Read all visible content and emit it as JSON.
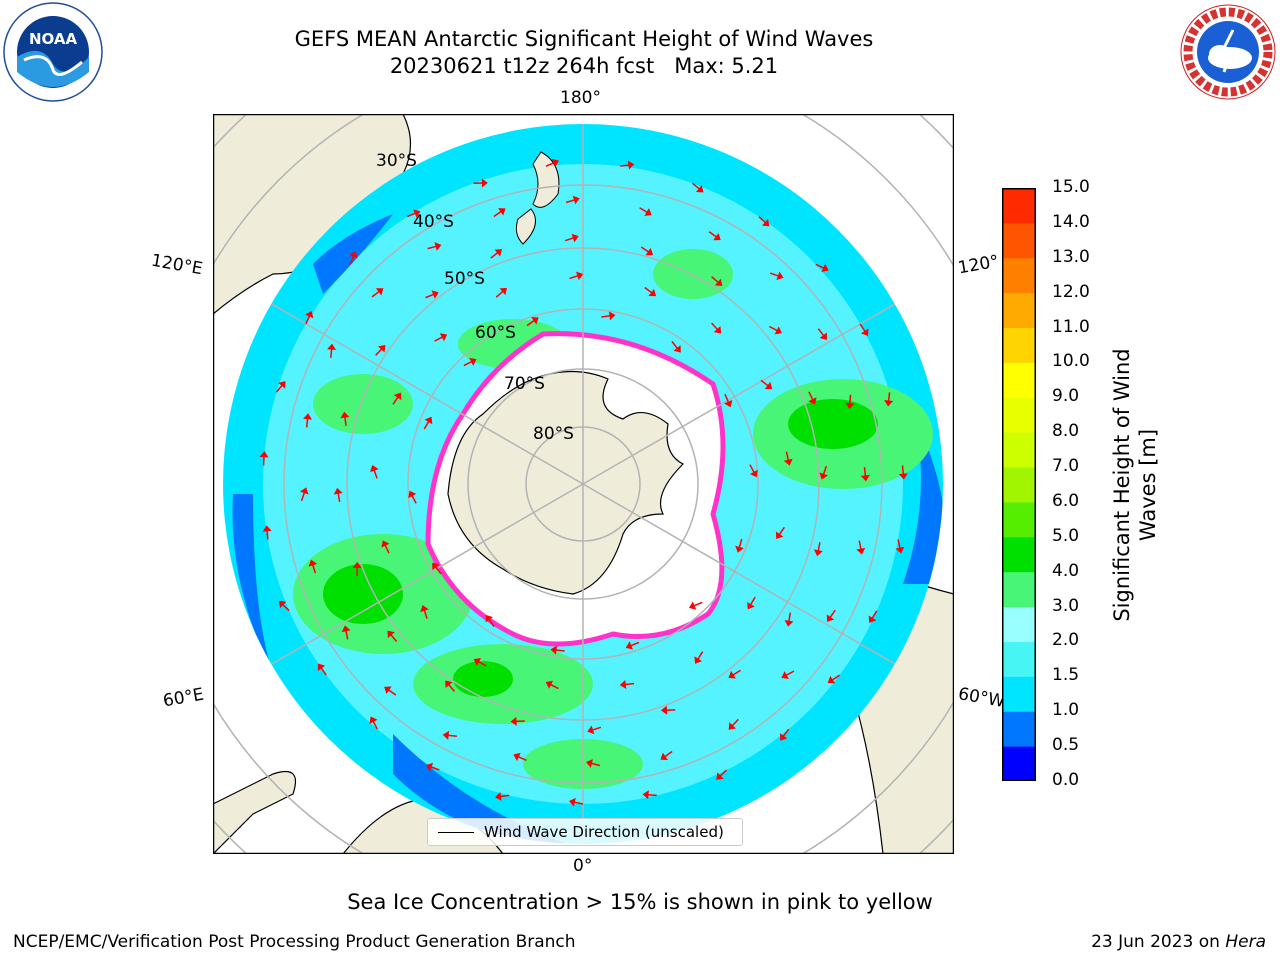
{
  "header": {
    "title_line1": "GEFS MEAN Antarctic Significant Height of Wind Waves",
    "title_line2": "20230621 t12z 264h fcst   Max: 5.21"
  },
  "logos": {
    "left": {
      "name": "noaa-logo",
      "text": "NOAA"
    },
    "right": {
      "name": "nws-logo",
      "text": "NATIONAL WEATHER SERVICE"
    }
  },
  "map": {
    "projection": "south-polar-stereographic",
    "longitude_labels": [
      "180°",
      "120°E",
      "120°",
      "60°E",
      "60°W",
      "0°"
    ],
    "latitude_labels": [
      "30°S",
      "40°S",
      "50°S",
      "60°S",
      "70°S",
      "80°S"
    ],
    "colors": {
      "land": "#efedda",
      "ocean_low": "#00e5ff",
      "ocean_mid": "#99ffff",
      "ocean_high": "#48f577",
      "ocean_peak": "#00e000",
      "sea_ice_edge": "#ff33cc",
      "sea_ice": "#ffffff",
      "arrow": "#ff0000",
      "grid": "#b3b3b3"
    }
  },
  "colorbar": {
    "title": "Significant Height of Wind Waves [m]",
    "ticks": [
      "15.0",
      "14.0",
      "13.0",
      "12.0",
      "11.0",
      "10.0",
      "9.0",
      "8.0",
      "7.0",
      "6.0",
      "5.0",
      "4.0",
      "3.0",
      "2.0",
      "1.5",
      "1.0",
      "0.5",
      "0.0"
    ],
    "colors_bottom_to_top": [
      "#0000ff",
      "#0077ff",
      "#00e5ff",
      "#48f5f5",
      "#99ffff",
      "#48f577",
      "#00e000",
      "#55ee00",
      "#a2f500",
      "#ccff00",
      "#e8ff00",
      "#ffff00",
      "#ffd400",
      "#ffaa00",
      "#ff8000",
      "#ff5500",
      "#ff2a00"
    ]
  },
  "legend": {
    "label": "Wind Wave Direction (unscaled)"
  },
  "note": "Sea Ice Concentration > 15% is shown in pink to yellow",
  "footer": {
    "left": "NCEP/EMC/Verification Post Processing Product Generation Branch",
    "date": "23 Jun 2023 on ",
    "host": "Hera"
  }
}
